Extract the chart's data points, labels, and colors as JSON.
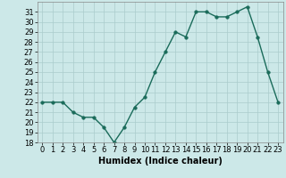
{
  "x": [
    0,
    1,
    2,
    3,
    4,
    5,
    6,
    7,
    8,
    9,
    10,
    11,
    12,
    13,
    14,
    15,
    16,
    17,
    18,
    19,
    20,
    21,
    22,
    23
  ],
  "y": [
    22,
    22,
    22,
    21,
    20.5,
    20.5,
    19.5,
    18,
    19.5,
    21.5,
    22.5,
    25,
    27,
    29,
    28.5,
    31,
    31,
    30.5,
    30.5,
    31,
    31.5,
    28.5,
    25,
    22
  ],
  "line_color": "#1a6b5a",
  "marker_color": "#1a6b5a",
  "bg_color": "#cce8e8",
  "grid_color": "#aacccc",
  "xlabel": "Humidex (Indice chaleur)",
  "ylabel": "",
  "ylim": [
    18,
    32
  ],
  "yticks": [
    18,
    19,
    20,
    21,
    22,
    23,
    24,
    25,
    26,
    27,
    28,
    29,
    30,
    31
  ],
  "xticks": [
    0,
    1,
    2,
    3,
    4,
    5,
    6,
    7,
    8,
    9,
    10,
    11,
    12,
    13,
    14,
    15,
    16,
    17,
    18,
    19,
    20,
    21,
    22,
    23
  ],
  "xlabel_fontsize": 7,
  "tick_fontsize": 6,
  "line_width": 1.0,
  "marker_size": 2.5
}
